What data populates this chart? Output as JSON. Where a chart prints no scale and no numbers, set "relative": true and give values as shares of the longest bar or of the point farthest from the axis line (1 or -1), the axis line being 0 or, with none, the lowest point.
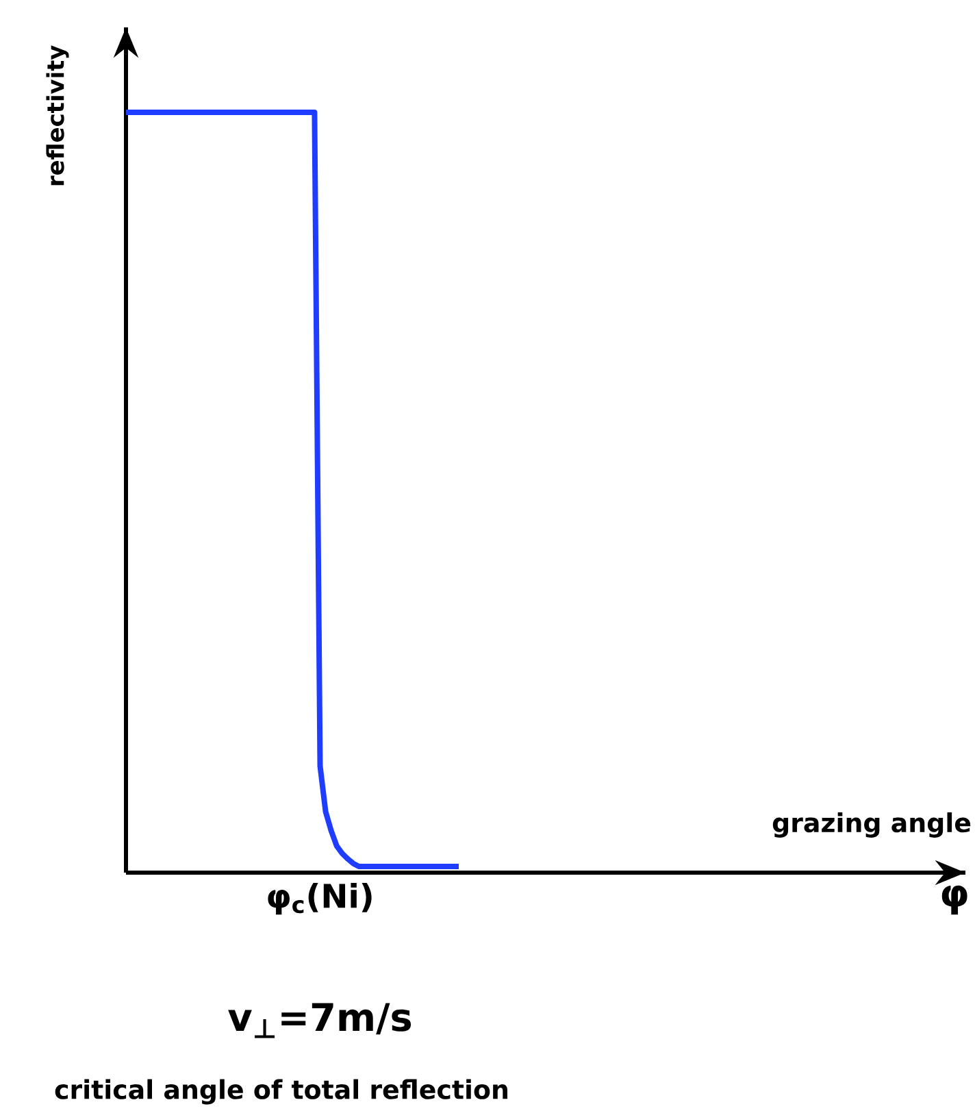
{
  "chart_data": {
    "type": "line",
    "relative": true,
    "ylabel": "reflectivity",
    "categories": [
      null,
      null,
      null,
      null,
      null,
      null,
      null,
      null,
      null,
      null,
      null,
      null,
      null,
      null,
      null,
      null,
      null,
      null,
      null,
      null,
      null,
      null,
      null,
      null,
      null,
      null,
      null,
      null,
      null,
      null,
      null,
      null,
      null,
      null,
      null,
      null,
      null,
      null,
      null,
      null,
      null,
      null,
      null,
      null,
      null,
      null,
      null,
      null,
      null,
      null,
      null,
      null,
      null,
      null,
      null,
      null,
      null,
      null,
      null,
      null,
      null
    ],
    "values": [
      1,
      1,
      1,
      1,
      1,
      1,
      1,
      1,
      1,
      1,
      1,
      1,
      1,
      1,
      1,
      1,
      1,
      1,
      1,
      1,
      1,
      1,
      1,
      1,
      1,
      1,
      1,
      1,
      1,
      1,
      1,
      1,
      1,
      1,
      1,
      0.14,
      0.08,
      0.055,
      0.035,
      0.025,
      0.018,
      0.012,
      0.008,
      0.008,
      0.008,
      0.008,
      0.008,
      0.008,
      0.008,
      0.008,
      0.008,
      0.008,
      0.008,
      0.008,
      0.008,
      0.008,
      0.008,
      0.008,
      0.008,
      0.008,
      0.008
    ],
    "color": "#1f3dff",
    "annotations": [
      "φ$_{c}$(Ni)",
      "v$_{⊥}$=7m/s",
      "critical angle of total reflection",
      "φ",
      "grazing angle"
    ]
  }
}
